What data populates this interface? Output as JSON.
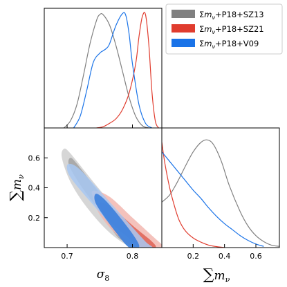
{
  "chart_data": {
    "type": "triangle",
    "legend": {
      "placement": "top-right",
      "entries": [
        {
          "label": "Σm_ν+P18+SZ13",
          "color": "#808080"
        },
        {
          "label": "Σm_ν+P18+SZ21",
          "color": "#e03c2e"
        },
        {
          "label": "Σm_ν+P18+V09",
          "color": "#1a73e8"
        }
      ]
    },
    "x_sigma8": {
      "label": "σ_8",
      "range": [
        0.665,
        0.845
      ],
      "ticks": [
        0.7,
        0.8
      ],
      "tick_labels": [
        "0.7",
        "0.8"
      ]
    },
    "x_mnu": {
      "label": "Σm_ν",
      "range": [
        0.0,
        0.75
      ],
      "ticks": [
        0.2,
        0.4,
        0.6
      ],
      "tick_labels": [
        "0.2",
        "0.4",
        "0.6"
      ]
    },
    "y_mnu": {
      "label": "Σm_ν",
      "range": [
        0.0,
        0.8
      ],
      "ticks": [
        0.2,
        0.4,
        0.6
      ],
      "tick_labels": [
        "0.2",
        "0.4",
        "0.6"
      ]
    },
    "sigma8_marginal": [
      {
        "name": "Σm_ν+P18+SZ13",
        "color": "#808080",
        "x": [
          0.695,
          0.705,
          0.715,
          0.725,
          0.735,
          0.745,
          0.75,
          0.755,
          0.765,
          0.775,
          0.785,
          0.795,
          0.805,
          0.815,
          0.825
        ],
        "y": [
          0.0,
          0.06,
          0.2,
          0.45,
          0.72,
          0.92,
          0.97,
          0.97,
          0.88,
          0.7,
          0.48,
          0.26,
          0.1,
          0.02,
          0.0
        ]
      },
      {
        "name": "Σm_ν+P18+SZ21",
        "color": "#e03c2e",
        "x": [
          0.745,
          0.755,
          0.765,
          0.775,
          0.785,
          0.795,
          0.805,
          0.81,
          0.815,
          0.82,
          0.825,
          0.83,
          0.835,
          0.84
        ],
        "y": [
          0.0,
          0.01,
          0.04,
          0.08,
          0.16,
          0.3,
          0.55,
          0.78,
          0.95,
          0.97,
          0.72,
          0.3,
          0.06,
          0.0
        ]
      },
      {
        "name": "Σm_ν+P18+V09",
        "color": "#1a73e8",
        "x": [
          0.71,
          0.72,
          0.73,
          0.74,
          0.75,
          0.755,
          0.76,
          0.765,
          0.775,
          0.785,
          0.79,
          0.795,
          0.8,
          0.81,
          0.82,
          0.83
        ],
        "y": [
          0.0,
          0.1,
          0.32,
          0.56,
          0.64,
          0.66,
          0.68,
          0.72,
          0.88,
          0.98,
          0.96,
          0.8,
          0.55,
          0.2,
          0.04,
          0.0
        ]
      }
    ],
    "mnu_marginal": [
      {
        "name": "Σm_ν+P18+SZ13",
        "color": "#808080",
        "x": [
          0.0,
          0.05,
          0.1,
          0.15,
          0.2,
          0.25,
          0.29,
          0.33,
          0.38,
          0.43,
          0.5,
          0.55,
          0.6,
          0.65,
          0.7,
          0.75
        ],
        "y": [
          0.38,
          0.44,
          0.55,
          0.68,
          0.8,
          0.88,
          0.9,
          0.86,
          0.72,
          0.52,
          0.3,
          0.18,
          0.1,
          0.05,
          0.02,
          0.01
        ]
      },
      {
        "name": "Σm_ν+P18+SZ21",
        "color": "#e03c2e",
        "x": [
          0.0,
          0.02,
          0.05,
          0.08,
          0.11,
          0.15,
          0.2,
          0.25,
          0.3,
          0.35,
          0.4
        ],
        "y": [
          0.88,
          0.7,
          0.5,
          0.35,
          0.23,
          0.14,
          0.08,
          0.045,
          0.02,
          0.008,
          0.0
        ]
      },
      {
        "name": "Σm_ν+P18+V09",
        "color": "#1a73e8",
        "x": [
          0.0,
          0.05,
          0.1,
          0.15,
          0.2,
          0.25,
          0.3,
          0.35,
          0.4,
          0.45,
          0.5,
          0.55,
          0.6,
          0.65
        ],
        "y": [
          0.8,
          0.72,
          0.64,
          0.56,
          0.48,
          0.41,
          0.33,
          0.26,
          0.2,
          0.15,
          0.1,
          0.06,
          0.03,
          0.01
        ]
      }
    ],
    "contours_2d": [
      {
        "name": "Σm_ν+P18+SZ13",
        "colors": {
          "outer": "#cfcfcf",
          "inner": "#a5a5a5"
        },
        "outer": [
          [
            0.695,
            0.66
          ],
          [
            0.705,
            0.63
          ],
          [
            0.74,
            0.44
          ],
          [
            0.77,
            0.28
          ],
          [
            0.795,
            0.13
          ],
          [
            0.81,
            0.02
          ],
          [
            0.83,
            0.0
          ],
          [
            0.8,
            0.0
          ],
          [
            0.765,
            0.1
          ],
          [
            0.73,
            0.27
          ],
          [
            0.705,
            0.44
          ],
          [
            0.692,
            0.6
          ]
        ],
        "inner": [
          [
            0.705,
            0.6
          ],
          [
            0.715,
            0.56
          ],
          [
            0.745,
            0.39
          ],
          [
            0.775,
            0.22
          ],
          [
            0.795,
            0.08
          ],
          [
            0.78,
            0.06
          ],
          [
            0.75,
            0.24
          ],
          [
            0.72,
            0.42
          ],
          [
            0.703,
            0.55
          ]
        ]
      },
      {
        "name": "Σm_ν+P18+SZ21",
        "colors": {
          "outer": "#f2b7b0",
          "inner": "#e0675a"
        },
        "outer": [
          [
            0.74,
            0.38
          ],
          [
            0.765,
            0.34
          ],
          [
            0.8,
            0.2
          ],
          [
            0.83,
            0.08
          ],
          [
            0.845,
            0.02
          ],
          [
            0.845,
            0.0
          ],
          [
            0.805,
            0.0
          ],
          [
            0.775,
            0.09
          ],
          [
            0.75,
            0.22
          ],
          [
            0.74,
            0.33
          ]
        ],
        "inner": [
          [
            0.75,
            0.3
          ],
          [
            0.77,
            0.26
          ],
          [
            0.805,
            0.13
          ],
          [
            0.83,
            0.04
          ],
          [
            0.835,
            0.0
          ],
          [
            0.815,
            0.0
          ],
          [
            0.79,
            0.08
          ],
          [
            0.76,
            0.2
          ]
        ]
      },
      {
        "name": "Σm_ν+P18+V09",
        "colors": {
          "outer": "#a8c8f2",
          "inner": "#3b7fdd",
          "core": "#1a5fc8"
        },
        "outer": [
          [
            0.703,
            0.56
          ],
          [
            0.72,
            0.52
          ],
          [
            0.76,
            0.33
          ],
          [
            0.795,
            0.16
          ],
          [
            0.82,
            0.04
          ],
          [
            0.83,
            0.0
          ],
          [
            0.805,
            0.0
          ],
          [
            0.78,
            0.09
          ],
          [
            0.745,
            0.26
          ],
          [
            0.71,
            0.44
          ],
          [
            0.7,
            0.52
          ]
        ],
        "inner": [
          [
            0.745,
            0.36
          ],
          [
            0.76,
            0.31
          ],
          [
            0.785,
            0.18
          ],
          [
            0.805,
            0.06
          ],
          [
            0.81,
            0.0
          ],
          [
            0.795,
            0.0
          ],
          [
            0.775,
            0.1
          ],
          [
            0.75,
            0.25
          ],
          [
            0.742,
            0.32
          ]
        ]
      }
    ]
  }
}
